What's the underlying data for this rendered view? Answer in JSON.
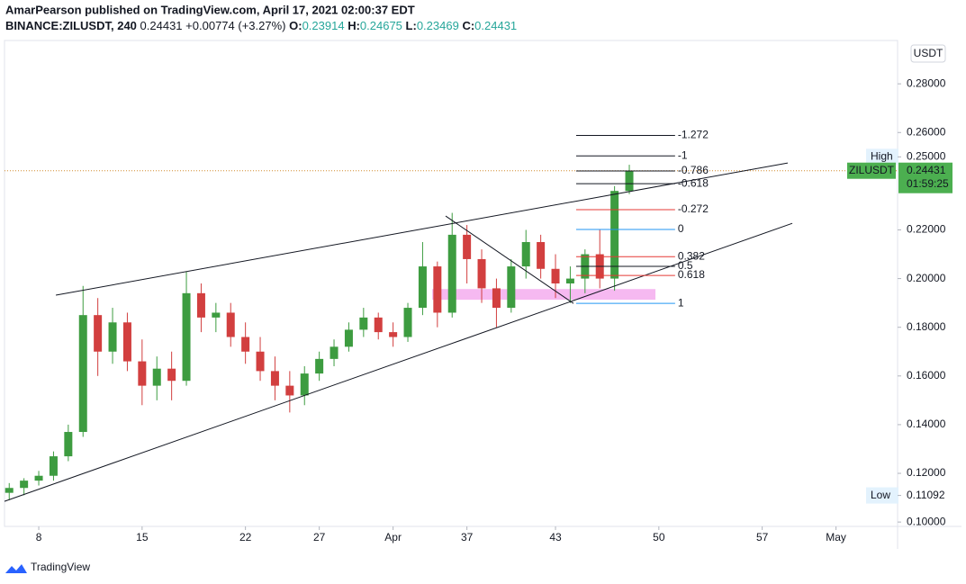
{
  "chart_data": {
    "type": "candlestick",
    "header": {
      "line1": "AmarPearson published on TradingView.com, April 17, 2021 02:00:37 EDT",
      "symbol": "BINANCE:ZILUSDT, 240",
      "last": "0.24431",
      "change": "+0.00774 (+3.27%)",
      "o_label": "O:",
      "o": "0.23914",
      "h_label": "H:",
      "h": "0.24675",
      "l_label": "L:",
      "l": "0.23469",
      "c_label": "C:",
      "c": "0.24431"
    },
    "currency": "USDT",
    "brand": "TradingView",
    "up_color": "#3d9c40",
    "down_color": "#d23f3f",
    "x": [
      6,
      7,
      8,
      9,
      10,
      11,
      12,
      13,
      14,
      15,
      16,
      17,
      18,
      19,
      20,
      21,
      22,
      23,
      24,
      25,
      26,
      27,
      28,
      29,
      30,
      31,
      32,
      33,
      34,
      35,
      36,
      37,
      38,
      39,
      40,
      41,
      42,
      43,
      44,
      45,
      46,
      47,
      48
    ],
    "open": [
      0.112,
      0.114,
      0.117,
      0.119,
      0.127,
      0.137,
      0.185,
      0.17,
      0.182,
      0.166,
      0.156,
      0.163,
      0.158,
      0.194,
      0.184,
      0.186,
      0.176,
      0.17,
      0.162,
      0.156,
      0.152,
      0.161,
      0.167,
      0.172,
      0.179,
      0.184,
      0.178,
      0.176,
      0.188,
      0.205,
      0.186,
      0.218,
      0.208,
      0.196,
      0.188,
      0.205,
      0.215,
      0.204,
      0.198,
      0.2,
      0.21,
      0.2,
      0.236
    ],
    "high": [
      0.116,
      0.118,
      0.121,
      0.129,
      0.14,
      0.197,
      0.192,
      0.188,
      0.186,
      0.175,
      0.168,
      0.17,
      0.203,
      0.198,
      0.19,
      0.19,
      0.182,
      0.176,
      0.168,
      0.162,
      0.164,
      0.17,
      0.175,
      0.182,
      0.188,
      0.186,
      0.182,
      0.19,
      0.215,
      0.207,
      0.227,
      0.222,
      0.212,
      0.2,
      0.208,
      0.22,
      0.218,
      0.21,
      0.205,
      0.212,
      0.22,
      0.238,
      0.24675
    ],
    "low": [
      0.109,
      0.111,
      0.115,
      0.117,
      0.125,
      0.135,
      0.16,
      0.165,
      0.162,
      0.148,
      0.15,
      0.15,
      0.156,
      0.178,
      0.178,
      0.172,
      0.165,
      0.158,
      0.15,
      0.145,
      0.148,
      0.158,
      0.164,
      0.17,
      0.176,
      0.175,
      0.172,
      0.174,
      0.185,
      0.18,
      0.184,
      0.198,
      0.19,
      0.18,
      0.186,
      0.2,
      0.2,
      0.192,
      0.19,
      0.194,
      0.196,
      0.195,
      0.23469
    ],
    "close": [
      0.114,
      0.117,
      0.119,
      0.127,
      0.137,
      0.185,
      0.17,
      0.182,
      0.166,
      0.156,
      0.163,
      0.158,
      0.194,
      0.184,
      0.186,
      0.176,
      0.17,
      0.162,
      0.156,
      0.152,
      0.161,
      0.167,
      0.172,
      0.179,
      0.184,
      0.178,
      0.176,
      0.188,
      0.205,
      0.186,
      0.218,
      0.208,
      0.196,
      0.188,
      0.205,
      0.215,
      0.204,
      0.198,
      0.2,
      0.21,
      0.2,
      0.236,
      0.24431
    ],
    "xlim": [
      5.68,
      66.17
    ],
    "ylim": [
      0.0982,
      0.2978
    ],
    "xticks": [
      8,
      15,
      22,
      27,
      {
        "value": 32,
        "label": "Apr"
      },
      37,
      43,
      50,
      57,
      {
        "value": 62,
        "label": "May"
      }
    ],
    "yticks": [
      {
        "value": 0.28,
        "label": "0.28000"
      },
      {
        "value": 0.26,
        "label": "0.26000"
      },
      {
        "value": 0.22,
        "label": "0.22000"
      },
      {
        "value": 0.2,
        "label": "0.20000"
      },
      {
        "value": 0.18,
        "label": "0.18000"
      },
      {
        "value": 0.16,
        "label": "0.16000"
      },
      {
        "value": 0.14,
        "label": "0.14000"
      },
      {
        "value": 0.12,
        "label": "0.12000"
      },
      {
        "value": 0.1,
        "label": "0.10000"
      }
    ],
    "trendlines": [
      {
        "x": [
          9.16,
          58.73
        ],
        "y": [
          0.1932,
          0.2475
        ]
      },
      {
        "x": [
          5.68,
          59.04
        ],
        "y": [
          0.1085,
          0.2227
        ]
      },
      {
        "x": [
          35.56,
          44.22
        ],
        "y": [
          0.2257,
          0.1898
        ]
      }
    ],
    "zone": {
      "x": [
        34.65,
        49.77
      ],
      "y": [
        0.1913,
        0.1957
      ],
      "color": "#f4a7ee"
    },
    "fib_x": [
      44.4,
      51.1
    ],
    "fib": [
      {
        "label": "-1.272",
        "price": 0.2588,
        "color": "#131722"
      },
      {
        "label": "-1",
        "price": 0.2504,
        "color": "#131722"
      },
      {
        "label": "-0.786",
        "price": 0.2442,
        "color": "#131722"
      },
      {
        "label": "-0.618",
        "price": 0.239,
        "color": "#131722"
      },
      {
        "label": "-0.272",
        "price": 0.2283,
        "color": "#e53935"
      },
      {
        "label": "0",
        "price": 0.2202,
        "color": "#2196f3"
      },
      {
        "label": "0.382",
        "price": 0.209,
        "color": "#e53935"
      },
      {
        "label": "0.5",
        "price": 0.205,
        "color": "#131722"
      },
      {
        "label": "0.618",
        "price": 0.2013,
        "color": "#e53935"
      },
      {
        "label": "1",
        "price": 0.1898,
        "color": "#2196f3"
      }
    ],
    "high_marker": {
      "label": "High",
      "value": 0.25,
      "text": "0.25000"
    },
    "low_marker": {
      "label": "Low",
      "value": 0.11092,
      "text": "0.11092"
    },
    "current": {
      "symbol": "ZILUSDT",
      "value": 0.24431,
      "text": "0.24431",
      "countdown": "01:59:25",
      "color": "#4caf50"
    }
  }
}
